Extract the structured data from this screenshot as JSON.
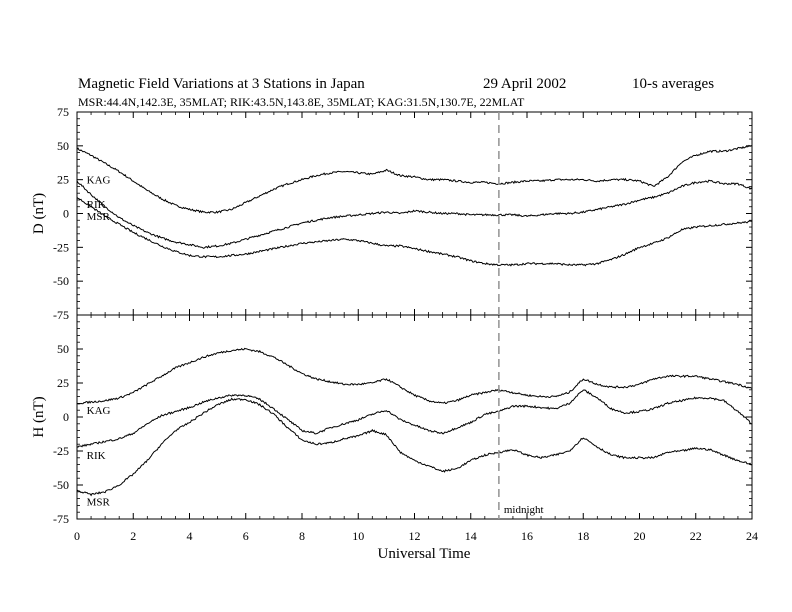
{
  "chart_data": {
    "type": "line",
    "title": {
      "main": "Magnetic Field Variations at 3 Stations in Japan",
      "date": "29  April     2002",
      "note": "10-s averages"
    },
    "subtitle": "MSR:44.4N,142.3E, 35MLAT;   RIK:43.5N,143.8E, 35MLAT;   KAG:31.5N,130.7E, 22MLAT",
    "xlabel": "Universal Time",
    "xlim": [
      0,
      24
    ],
    "xticks": [
      0,
      2,
      4,
      6,
      8,
      10,
      12,
      14,
      16,
      18,
      20,
      22,
      24
    ],
    "midnight": {
      "x": 15,
      "label": "midnight"
    },
    "panels": [
      {
        "id": "D",
        "ylabel": "D (nT)",
        "ylim": [
          -75,
          75
        ],
        "yticks": [
          75,
          50,
          25,
          0,
          -25,
          -50,
          -75
        ],
        "series": [
          {
            "name": "KAG",
            "label_x": 0.2,
            "label_y": 25,
            "x": [
              0,
              0.5,
              1,
              1.5,
              2,
              2.5,
              3,
              3.5,
              4,
              4.5,
              5,
              5.5,
              6,
              6.5,
              7,
              7.5,
              8,
              8.5,
              9,
              9.5,
              10,
              10.5,
              11,
              11.5,
              12,
              12.5,
              13,
              13.5,
              14,
              14.5,
              15,
              15.5,
              16,
              16.5,
              17,
              17.5,
              18,
              18.5,
              19,
              19.5,
              20,
              20.5,
              21,
              21.5,
              22,
              22.5,
              23,
              23.5,
              24
            ],
            "values": [
              48,
              43,
              37,
              31,
              24,
              17,
              11,
              6,
              3,
              1,
              1,
              3,
              8,
              13,
              18,
              22,
              25,
              28,
              30,
              31,
              30,
              29,
              32,
              28,
              27,
              25,
              25,
              24,
              23,
              23,
              22,
              23,
              24,
              24,
              25,
              25,
              25,
              24,
              25,
              25,
              24,
              20,
              27,
              38,
              43,
              46,
              46,
              48,
              50
            ]
          },
          {
            "name": "RIK",
            "label_x": 0.2,
            "label_y": 7,
            "x": [
              0,
              0.5,
              1,
              1.5,
              2,
              2.5,
              3,
              3.5,
              4,
              4.5,
              5,
              5.5,
              6,
              6.5,
              7,
              7.5,
              8,
              8.5,
              9,
              9.5,
              10,
              10.5,
              11,
              11.5,
              12,
              12.5,
              13,
              13.5,
              14,
              14.5,
              15,
              15.5,
              16,
              16.5,
              17,
              17.5,
              18,
              18.5,
              19,
              19.5,
              20,
              20.5,
              21,
              21.5,
              22,
              22.5,
              23,
              23.5,
              24
            ],
            "values": [
              24,
              14,
              5,
              -3,
              -9,
              -14,
              -18,
              -21,
              -23,
              -25,
              -24,
              -22,
              -19,
              -16,
              -13,
              -10,
              -7,
              -5,
              -3,
              -2,
              -1,
              0,
              1,
              0,
              2,
              1,
              0,
              0,
              -1,
              -1,
              -1,
              -1,
              -2,
              -1,
              0,
              0,
              1,
              3,
              5,
              7,
              10,
              12,
              15,
              20,
              23,
              24,
              22,
              22,
              18
            ]
          },
          {
            "name": "MSR",
            "label_x": 0.2,
            "label_y": -2,
            "x": [
              0,
              0.5,
              1,
              1.5,
              2,
              2.5,
              3,
              3.5,
              4,
              4.5,
              5,
              5.5,
              6,
              6.5,
              7,
              7.5,
              8,
              8.5,
              9,
              9.5,
              10,
              10.5,
              11,
              11.5,
              12,
              12.5,
              13,
              13.5,
              14,
              14.5,
              15,
              15.5,
              16,
              16.5,
              17,
              17.5,
              18,
              18.5,
              19,
              19.5,
              20,
              20.5,
              21,
              21.5,
              22,
              22.5,
              23,
              23.5,
              24
            ],
            "values": [
              12,
              5,
              -2,
              -8,
              -14,
              -19,
              -24,
              -28,
              -31,
              -32,
              -32,
              -31,
              -30,
              -28,
              -26,
              -24,
              -22,
              -21,
              -20,
              -19,
              -20,
              -22,
              -24,
              -24,
              -26,
              -28,
              -30,
              -32,
              -35,
              -37,
              -38,
              -38,
              -37,
              -37,
              -37,
              -38,
              -38,
              -37,
              -34,
              -30,
              -25,
              -22,
              -18,
              -12,
              -10,
              -9,
              -8,
              -7,
              -6
            ]
          }
        ]
      },
      {
        "id": "H",
        "ylabel": "H (nT)",
        "ylim": [
          -75,
          75
        ],
        "yticks": [
          50,
          25,
          0,
          -25,
          -50,
          -75
        ],
        "series": [
          {
            "name": "KAG",
            "label_x": 0.2,
            "label_y": 5,
            "x": [
              0,
              0.5,
              1,
              1.5,
              2,
              2.5,
              3,
              3.5,
              4,
              4.5,
              5,
              5.5,
              6,
              6.5,
              7,
              7.5,
              8,
              8.5,
              9,
              9.5,
              10,
              10.5,
              11,
              11.5,
              12,
              12.5,
              13,
              13.5,
              14,
              14.5,
              15,
              15.5,
              16,
              16.5,
              17,
              17.5,
              18,
              18.5,
              19,
              19.5,
              20,
              20.5,
              21,
              21.5,
              22,
              22.5,
              23,
              23.5,
              24
            ],
            "values": [
              10,
              11,
              12,
              14,
              18,
              24,
              30,
              36,
              40,
              44,
              47,
              49,
              50,
              48,
              44,
              38,
              32,
              28,
              26,
              24,
              24,
              25,
              28,
              22,
              16,
              12,
              10,
              12,
              16,
              18,
              20,
              18,
              16,
              15,
              15,
              18,
              28,
              24,
              22,
              22,
              24,
              28,
              30,
              30,
              30,
              28,
              26,
              24,
              21
            ]
          },
          {
            "name": "RIK",
            "label_x": 0.2,
            "label_y": -28,
            "x": [
              0,
              0.5,
              1,
              1.5,
              2,
              2.5,
              3,
              3.5,
              4,
              4.5,
              5,
              5.5,
              6,
              6.5,
              7,
              7.5,
              8,
              8.5,
              9,
              9.5,
              10,
              10.5,
              11,
              11.5,
              12,
              12.5,
              13,
              13.5,
              14,
              14.5,
              15,
              15.5,
              16,
              16.5,
              17,
              17.5,
              18,
              18.5,
              19,
              19.5,
              20,
              20.5,
              21,
              21.5,
              22,
              22.5,
              23,
              23.5,
              24
            ],
            "values": [
              -22,
              -20,
              -18,
              -16,
              -12,
              -5,
              1,
              4,
              7,
              11,
              14,
              16,
              16,
              13,
              6,
              -2,
              -10,
              -12,
              -8,
              -5,
              -2,
              2,
              5,
              -2,
              -6,
              -10,
              -12,
              -8,
              -4,
              2,
              4,
              8,
              8,
              7,
              6,
              10,
              20,
              14,
              6,
              3,
              4,
              6,
              10,
              12,
              14,
              14,
              12,
              4,
              -5
            ]
          },
          {
            "name": "MSR",
            "label_x": 0.2,
            "label_y": -62,
            "x": [
              0,
              0.5,
              1,
              1.5,
              2,
              2.5,
              3,
              3.5,
              4,
              4.5,
              5,
              5.5,
              6,
              6.5,
              7,
              7.5,
              8,
              8.5,
              9,
              9.5,
              10,
              10.5,
              11,
              11.5,
              12,
              12.5,
              13,
              13.5,
              14,
              14.5,
              15,
              15.5,
              16,
              16.5,
              17,
              17.5,
              18,
              18.5,
              19,
              19.5,
              20,
              20.5,
              21,
              21.5,
              22,
              22.5,
              23,
              23.5,
              24
            ],
            "values": [
              -54,
              -57,
              -55,
              -50,
              -42,
              -32,
              -20,
              -10,
              -4,
              3,
              9,
              13,
              13,
              9,
              2,
              -8,
              -17,
              -20,
              -19,
              -16,
              -14,
              -10,
              -13,
              -26,
              -32,
              -36,
              -40,
              -38,
              -32,
              -28,
              -26,
              -24,
              -28,
              -30,
              -28,
              -25,
              -15,
              -22,
              -28,
              -30,
              -30,
              -30,
              -26,
              -25,
              -23,
              -24,
              -28,
              -32,
              -35
            ]
          }
        ]
      }
    ]
  }
}
